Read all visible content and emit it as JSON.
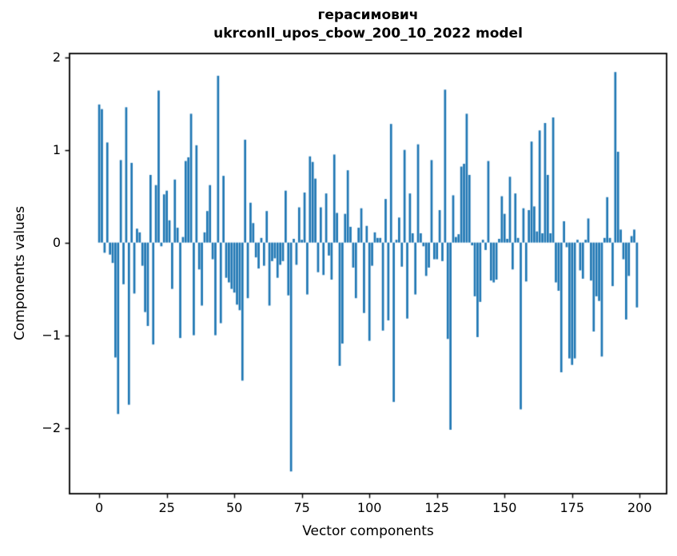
{
  "chart_data": {
    "type": "bar",
    "title_line1": "герасимович",
    "title_line2": "ukrconll_upos_cbow_200_10_2022 model",
    "xlabel": "Vector components",
    "ylabel": "Components values",
    "bar_color": "#1f77b4",
    "axis_color": "#000000",
    "background": "#ffffff",
    "grid": false,
    "legend": null,
    "n_components": 200,
    "xticks": [
      0,
      25,
      50,
      75,
      100,
      125,
      150,
      175,
      200
    ],
    "yticks": [
      2,
      1,
      0,
      -1,
      -2
    ],
    "xlim": [
      -10.975,
      209.975
    ],
    "ylim": [
      -2.71,
      2.04
    ],
    "values": [
      1.49,
      1.44,
      -0.11,
      1.08,
      -0.13,
      -0.22,
      -1.24,
      -1.85,
      0.89,
      -0.45,
      1.46,
      -1.75,
      0.86,
      -0.55,
      0.15,
      0.11,
      -0.25,
      -0.75,
      -0.9,
      0.73,
      -1.1,
      0.62,
      1.64,
      -0.04,
      0.52,
      0.56,
      0.24,
      -0.5,
      0.68,
      0.16,
      -1.03,
      0.06,
      0.88,
      0.92,
      1.39,
      -1.0,
      1.05,
      -0.29,
      -0.68,
      0.11,
      0.34,
      0.62,
      -0.18,
      -1.0,
      1.8,
      -0.87,
      0.72,
      -0.38,
      -0.43,
      -0.5,
      -0.54,
      -0.67,
      -0.73,
      -1.49,
      1.11,
      -0.6,
      0.43,
      0.21,
      -0.16,
      -0.28,
      0.05,
      -0.25,
      0.34,
      -0.68,
      -0.2,
      -0.17,
      -0.38,
      -0.24,
      -0.2,
      0.56,
      -0.57,
      -2.47,
      0.04,
      -0.24,
      0.38,
      0.03,
      0.54,
      -0.56,
      0.93,
      0.87,
      0.69,
      -0.32,
      0.38,
      -0.35,
      0.53,
      -0.14,
      -0.4,
      0.95,
      0.32,
      -1.33,
      -1.09,
      0.31,
      0.78,
      0.17,
      -0.27,
      -0.6,
      0.16,
      0.37,
      -0.76,
      0.18,
      -1.06,
      -0.25,
      0.11,
      0.05,
      0.05,
      -0.95,
      0.47,
      -0.84,
      1.28,
      -1.72,
      0.03,
      0.27,
      -0.26,
      1.0,
      -0.82,
      0.53,
      0.1,
      -0.56,
      1.06,
      0.1,
      -0.04,
      -0.36,
      -0.27,
      0.89,
      -0.18,
      -0.18,
      0.35,
      -0.2,
      1.65,
      -1.04,
      -2.02,
      0.51,
      0.06,
      0.09,
      0.82,
      0.85,
      1.39,
      0.73,
      -0.03,
      -0.58,
      -1.02,
      -0.64,
      0.03,
      -0.08,
      0.88,
      -0.41,
      -0.43,
      -0.4,
      0.04,
      0.5,
      0.31,
      0.04,
      0.71,
      -0.29,
      0.53,
      0.05,
      -1.8,
      0.37,
      -0.42,
      0.35,
      1.09,
      0.39,
      0.12,
      1.21,
      0.1,
      1.29,
      0.73,
      0.1,
      1.35,
      -0.43,
      -0.52,
      -1.4,
      0.23,
      -0.05,
      -1.25,
      -1.32,
      -1.25,
      0.03,
      -0.3,
      -0.39,
      0.03,
      0.26,
      -0.41,
      -0.96,
      -0.58,
      -0.63,
      -1.23,
      0.05,
      0.49,
      0.05,
      -0.47,
      1.84,
      0.98,
      0.14,
      -0.18,
      -0.83,
      -0.36,
      0.07,
      0.14,
      -0.7
    ]
  }
}
